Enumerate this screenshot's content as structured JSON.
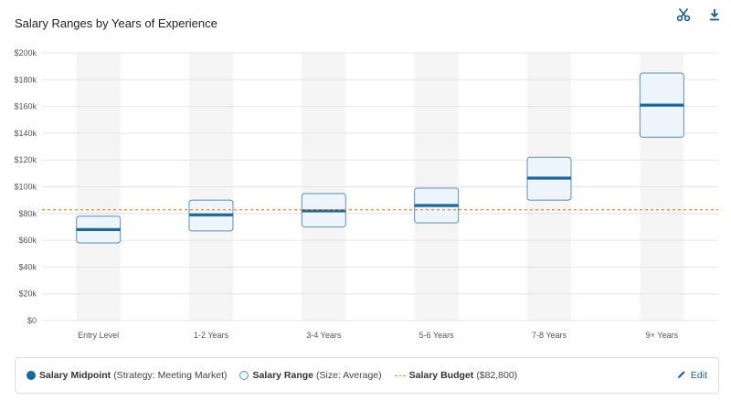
{
  "toolbar": {
    "cut_icon": "scissors-icon",
    "download_icon": "download-icon"
  },
  "colors": {
    "midpoint": "#1668a3",
    "range_fill": "#eef5fc",
    "range_stroke": "#5b8fbd",
    "budget": "#f08a3c",
    "column_band": "#f5f5f5"
  },
  "chart_data": {
    "type": "range",
    "title": "Salary Ranges by Years of Experience",
    "categories": [
      "Entry Level",
      "1-2 Years",
      "3-4 Years",
      "5-6 Years",
      "7-8 Years",
      "9+ Years"
    ],
    "ranges": [
      {
        "min": 58000,
        "max": 78000,
        "midpoint": 68000
      },
      {
        "min": 67000,
        "max": 90000,
        "midpoint": 79000
      },
      {
        "min": 70000,
        "max": 95000,
        "midpoint": 82000
      },
      {
        "min": 73000,
        "max": 99000,
        "midpoint": 86000
      },
      {
        "min": 90000,
        "max": 122000,
        "midpoint": 106500
      },
      {
        "min": 137000,
        "max": 185000,
        "midpoint": 161000
      }
    ],
    "budget": 82800,
    "ylim": [
      0,
      200000
    ],
    "yticks": [
      "$0",
      "$20k",
      "$40k",
      "$60k",
      "$80k",
      "$100k",
      "$120k",
      "$140k",
      "$160k",
      "$180k",
      "$200k"
    ],
    "grid": true
  },
  "legend": {
    "midpoint_label": "Salary Midpoint",
    "midpoint_note": "(Strategy: Meeting Market)",
    "range_label": "Salary Range",
    "range_note": "(Size: Average)",
    "budget_label": "Salary Budget",
    "budget_note": "($82,800)",
    "edit_label": "Edit"
  }
}
